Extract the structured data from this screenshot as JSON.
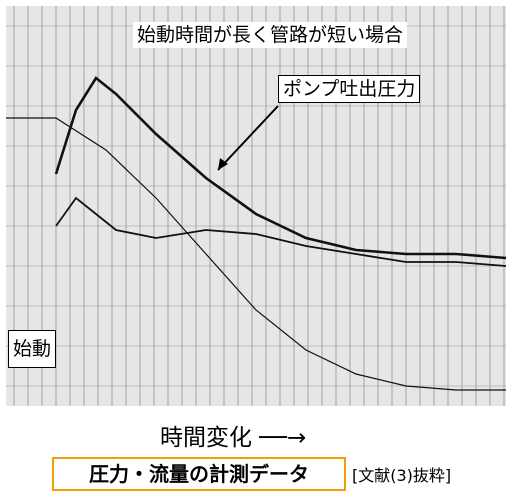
{
  "chart_data": {
    "type": "line",
    "title": "始動時間が長く管路が短い場合",
    "annotation_pump": "ポンプ吐出圧力",
    "annotation_start": "始動",
    "xlabel": "時間変化",
    "series": [
      {
        "name": "ポンプ吐出圧力",
        "x": [
          0.1,
          0.14,
          0.18,
          0.22,
          0.3,
          0.4,
          0.5,
          0.6,
          0.7,
          0.8,
          0.9,
          1.0
        ],
        "values": [
          0.58,
          0.74,
          0.82,
          0.78,
          0.68,
          0.57,
          0.48,
          0.42,
          0.39,
          0.38,
          0.38,
          0.37
        ]
      },
      {
        "x": [
          0.1,
          0.14,
          0.18,
          0.22,
          0.3,
          0.4,
          0.5,
          0.6,
          0.7,
          0.8,
          0.9,
          1.0
        ],
        "values": [
          0.45,
          0.52,
          0.48,
          0.44,
          0.42,
          0.44,
          0.43,
          0.4,
          0.38,
          0.36,
          0.36,
          0.35
        ]
      },
      {
        "x": [
          0.0,
          0.1,
          0.2,
          0.3,
          0.4,
          0.5,
          0.6,
          0.7,
          0.8,
          0.9,
          1.0
        ],
        "values": [
          0.72,
          0.72,
          0.64,
          0.52,
          0.38,
          0.24,
          0.14,
          0.08,
          0.05,
          0.04,
          0.04
        ]
      }
    ]
  },
  "footer": {
    "title": "圧力・流量の計測データ",
    "citation": "[文献(3)抜粋]"
  },
  "xaxis_caption": "時間変化 ──→"
}
